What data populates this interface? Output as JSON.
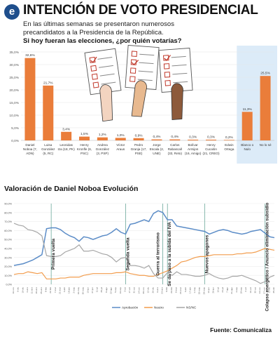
{
  "header": {
    "logo_letter": "e",
    "title": "INTENCIÓN DE VOTO PRESIDENCIAL",
    "subtitle": "En las últimas semanas se presentaron numerosos precandidatos a la Presidencia de la República.",
    "question": "Si hoy fueran las elecciones, ¿por quién votarías?"
  },
  "colors": {
    "bar": "#ea7d3a",
    "highlight_panel": "#dcebf8",
    "approve": "#5b8cc7",
    "neutral": "#f29c4c",
    "disapprove": "#a6a6a6",
    "vline": "#6aa79a",
    "logo": "#1e4e8c"
  },
  "source": "Fuente: Comunicaliza",
  "line_chart_title": "Valoración de Daniel Noboa Evolución",
  "chart_data": [
    {
      "type": "bar",
      "categories": [
        [
          "Daniel",
          "Noboa (7,",
          "ADN)"
        ],
        [
          "Luisa",
          "González",
          "(5, RC)"
        ],
        [
          "Leonidas",
          "Iza (18, PK)"
        ],
        [
          "Henry",
          "Kronfle (6,",
          "PSC)"
        ],
        [
          "Andrea",
          "González",
          "(3, PSP)"
        ],
        [
          "Víctor",
          "Araus"
        ],
        [
          "Pedro",
          "Granja (17,",
          "PSE)"
        ],
        [
          "Jorge",
          "Escala (2,",
          "UNE)"
        ],
        [
          "Carlos",
          "Rabascall",
          "(33, Reto)"
        ],
        [
          "Bolívar",
          "Armijos",
          "(16, Amigo)"
        ],
        [
          "Henry",
          "Cucalón",
          "(21, CREO)"
        ],
        [
          "Edwin",
          "Ortega"
        ],
        [
          "Blanco o",
          "Nulo"
        ],
        [
          "No lo sé"
        ]
      ],
      "values": [
        32.6,
        21.7,
        3.4,
        1.5,
        1.2,
        1.0,
        0.9,
        0.4,
        0.4,
        0.3,
        0.3,
        0.2,
        11.3,
        25.5
      ],
      "value_labels": [
        "32,6%",
        "21,7%",
        "3,4%",
        "1,5%",
        "1,2%",
        "1,0%",
        "0,9%",
        "0,4%",
        "0,4%",
        "0,3%",
        "0,3%",
        "0,2%",
        "11,3%",
        "25,5%"
      ],
      "highlighted_categories": [
        "Blanco o Nulo",
        "No lo sé"
      ],
      "y_ticks": [
        "0,0%",
        "5,0%",
        "10,0%",
        "15,0%",
        "20,0%",
        "25,0%",
        "30,0%",
        "35,0%"
      ],
      "ylim": [
        0,
        35
      ],
      "grid": true
    },
    {
      "type": "line",
      "title": "Valoración de Daniel Noboa Evolución",
      "ylim": [
        0,
        90
      ],
      "y_ticks": [
        "0,0%",
        "10,0%",
        "20,0%",
        "30,0%",
        "40,0%",
        "50,0%",
        "60,0%",
        "70,0%",
        "80,0%",
        "90,0%"
      ],
      "x_ticks": [
        "16-nov",
        "6-dic",
        "19-dic",
        "4-ene",
        "11-ene",
        "18-ene",
        "25-ene",
        "8-feb",
        "22-feb",
        "7-mar",
        "21-mar",
        "4-abr",
        "18-abr",
        "2-may",
        "16-may",
        "30-may",
        "13-jun",
        "27-jun",
        "11-jul",
        "25-jul",
        "8-ago",
        "22-ago",
        "5-sep",
        "19-sep",
        "3-oct",
        "17-oct",
        "31-oct",
        "14-nov",
        "28-nov",
        "12-dic",
        "26-dic",
        "9-ene",
        "23-ene",
        "6-feb",
        "20-feb",
        "6-mar",
        "20-mar",
        "3-abr",
        "17-abr",
        "1-may",
        "15-may",
        "29-may",
        "12-jun",
        "26-jun",
        "10-jul",
        "24-jul",
        "7-ago",
        "21-ago",
        "4-sep",
        "18-sep",
        "2-oct",
        "16-oct",
        "30-oct",
        "13-nov",
        "27-nov",
        "11-dic",
        "25-dic"
      ],
      "series": [
        {
          "name": "Aprobación",
          "values": [
            21,
            22,
            23,
            25,
            27,
            30,
            33,
            62,
            63,
            63,
            61,
            57,
            54,
            52,
            48,
            53,
            52,
            50,
            52,
            54,
            55,
            58,
            62,
            58,
            56,
            67,
            68,
            70,
            72,
            70,
            79,
            82,
            80,
            72,
            72,
            65,
            64,
            63,
            62,
            61,
            60,
            59,
            56,
            58,
            60,
            61,
            60,
            58,
            57,
            56,
            57,
            59,
            60,
            61,
            57,
            53,
            52
          ]
        },
        {
          "name": "Neutro",
          "values": [
            11,
            12,
            12,
            14,
            13,
            12,
            13,
            6,
            6,
            6,
            7,
            7,
            8,
            8,
            8,
            10,
            11,
            12,
            12,
            12,
            12,
            12,
            13,
            13,
            14,
            12,
            11,
            10,
            10,
            9,
            9,
            11,
            13,
            15,
            18,
            21,
            25,
            26,
            28,
            30,
            31,
            31,
            32,
            33,
            33,
            33,
            33,
            33,
            34,
            34,
            35,
            35,
            36,
            38,
            40,
            39,
            38
          ]
        },
        {
          "name": "NS/NC",
          "values": [
            68,
            66,
            65,
            61,
            60,
            58,
            54,
            32,
            31,
            31,
            32,
            36,
            38,
            40,
            44,
            37,
            37,
            38,
            36,
            34,
            33,
            30,
            25,
            29,
            30,
            21,
            21,
            20,
            18,
            21,
            12,
            7,
            7,
            13,
            10,
            14,
            11,
            11,
            10,
            9,
            9,
            10,
            12,
            9,
            7,
            6,
            7,
            9,
            9,
            10,
            8,
            6,
            4,
            1,
            3,
            8,
            10
          ]
        }
      ],
      "annotations": [
        "Primera vuelta",
        "Segunda vuelta",
        "Guerra al terrorismo",
        "Se da paso a la subida del IVA",
        "Nuevos apagones",
        "Colapso energético / Anuncio eliminación subsidio"
      ],
      "annotation_x_index": [
        8,
        24,
        32,
        33,
        41,
        54
      ],
      "grid": true,
      "legend_position": "bottom"
    }
  ]
}
